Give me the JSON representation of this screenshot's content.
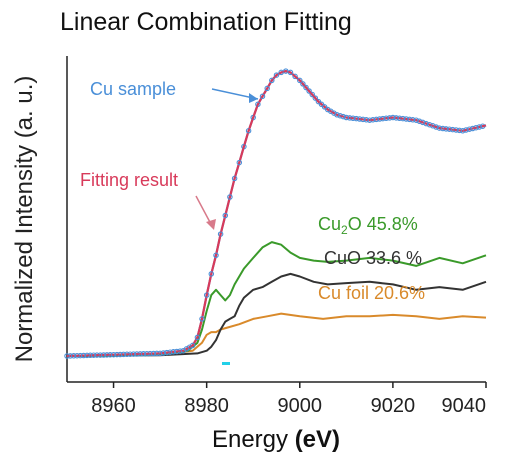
{
  "chart_data": {
    "type": "line",
    "title": "Linear Combination Fitting",
    "xlabel_main": "Energy ",
    "xlabel_unit": "(eV)",
    "ylabel": "Normalized Intensity (a. u.)",
    "xlim": [
      8950,
      9040
    ],
    "ylim": [
      0,
      1.2
    ],
    "x_ticks": [
      8960,
      8980,
      9000,
      9020,
      9040
    ],
    "x_tick_labels": [
      "8960",
      "8980",
      "9000",
      "9020",
      "9040"
    ],
    "grid": false,
    "series": [
      {
        "name": "Cu sample",
        "color": "#4a8fd8",
        "marker": "circle",
        "x": [
          8950,
          8960,
          8970,
          8975,
          8977,
          8978,
          8979,
          8980,
          8981,
          8982,
          8983,
          8984,
          8985,
          8986,
          8987,
          8988,
          8989,
          8990,
          8991,
          8992,
          8993,
          8994,
          8995,
          8996,
          8997,
          8998,
          8999,
          9000,
          9002,
          9004,
          9006,
          9008,
          9010,
          9015,
          9020,
          9025,
          9030,
          9035,
          9040
        ],
        "y": [
          0.0,
          0.005,
          0.01,
          0.02,
          0.04,
          0.07,
          0.14,
          0.23,
          0.31,
          0.38,
          0.46,
          0.53,
          0.6,
          0.67,
          0.73,
          0.79,
          0.85,
          0.9,
          0.95,
          0.98,
          1.01,
          1.04,
          1.06,
          1.07,
          1.075,
          1.07,
          1.055,
          1.04,
          1.0,
          0.96,
          0.93,
          0.91,
          0.9,
          0.89,
          0.9,
          0.89,
          0.86,
          0.85,
          0.87
        ]
      },
      {
        "name": "Fitting result",
        "color": "#d83a5a",
        "marker": "none",
        "x": [
          8950,
          8960,
          8970,
          8975,
          8977,
          8978,
          8979,
          8980,
          8981,
          8982,
          8983,
          8984,
          8985,
          8986,
          8987,
          8988,
          8989,
          8990,
          8991,
          8992,
          8993,
          8994,
          8995,
          8996,
          8997,
          8998,
          8999,
          9000,
          9002,
          9004,
          9006,
          9008,
          9010,
          9015,
          9020,
          9025,
          9030,
          9035,
          9040
        ],
        "y": [
          0.0,
          0.005,
          0.01,
          0.02,
          0.04,
          0.07,
          0.14,
          0.23,
          0.31,
          0.38,
          0.46,
          0.53,
          0.6,
          0.67,
          0.73,
          0.79,
          0.85,
          0.9,
          0.95,
          0.98,
          1.01,
          1.04,
          1.06,
          1.07,
          1.075,
          1.07,
          1.055,
          1.04,
          1.0,
          0.96,
          0.93,
          0.91,
          0.9,
          0.89,
          0.9,
          0.89,
          0.86,
          0.85,
          0.87
        ]
      },
      {
        "name": "Cu2O",
        "label_main": "Cu",
        "label_sub": "2",
        "label_rest": "O 45.8%",
        "color": "#3a9a2a",
        "x": [
          8950,
          8970,
          8976,
          8978,
          8979,
          8980,
          8981,
          8982,
          8983,
          8984,
          8985,
          8986,
          8988,
          8990,
          8992,
          8994,
          8996,
          8998,
          9000,
          9003,
          9006,
          9010,
          9015,
          9020,
          9025,
          9030,
          9035,
          9040
        ],
        "y": [
          0.0,
          0.005,
          0.02,
          0.05,
          0.1,
          0.17,
          0.23,
          0.25,
          0.23,
          0.21,
          0.23,
          0.27,
          0.33,
          0.37,
          0.41,
          0.43,
          0.42,
          0.39,
          0.37,
          0.36,
          0.355,
          0.36,
          0.37,
          0.36,
          0.34,
          0.37,
          0.35,
          0.38
        ]
      },
      {
        "name": "CuO",
        "label_text": "CuO 33.6 %",
        "color": "#333333",
        "x": [
          8950,
          8970,
          8978,
          8980,
          8981,
          8982,
          8983,
          8984,
          8985,
          8986,
          8987,
          8988,
          8990,
          8992,
          8994,
          8996,
          8998,
          9000,
          9003,
          9006,
          9010,
          9015,
          9020,
          9025,
          9030,
          9035,
          9040
        ],
        "y": [
          0.0,
          0.003,
          0.01,
          0.02,
          0.035,
          0.06,
          0.1,
          0.13,
          0.14,
          0.15,
          0.19,
          0.22,
          0.25,
          0.26,
          0.28,
          0.3,
          0.31,
          0.3,
          0.28,
          0.27,
          0.275,
          0.28,
          0.27,
          0.25,
          0.26,
          0.25,
          0.28
        ]
      },
      {
        "name": "Cu foil",
        "label_text": "Cu foil 20.6%",
        "color": "#d98a2b",
        "x": [
          8950,
          8970,
          8977,
          8979,
          8980,
          8981,
          8982,
          8983,
          8985,
          8987,
          8990,
          8993,
          8996,
          9000,
          9005,
          9010,
          9015,
          9020,
          9025,
          9030,
          9035,
          9040
        ],
        "y": [
          0.0,
          0.005,
          0.02,
          0.05,
          0.08,
          0.09,
          0.09,
          0.1,
          0.11,
          0.12,
          0.14,
          0.15,
          0.16,
          0.15,
          0.14,
          0.15,
          0.15,
          0.155,
          0.15,
          0.14,
          0.15,
          0.145
        ]
      }
    ],
    "annotations": [
      {
        "text": "Cu sample",
        "color": "#4a8fd8"
      },
      {
        "text": "Fitting result",
        "color": "#d83a5a"
      }
    ]
  }
}
